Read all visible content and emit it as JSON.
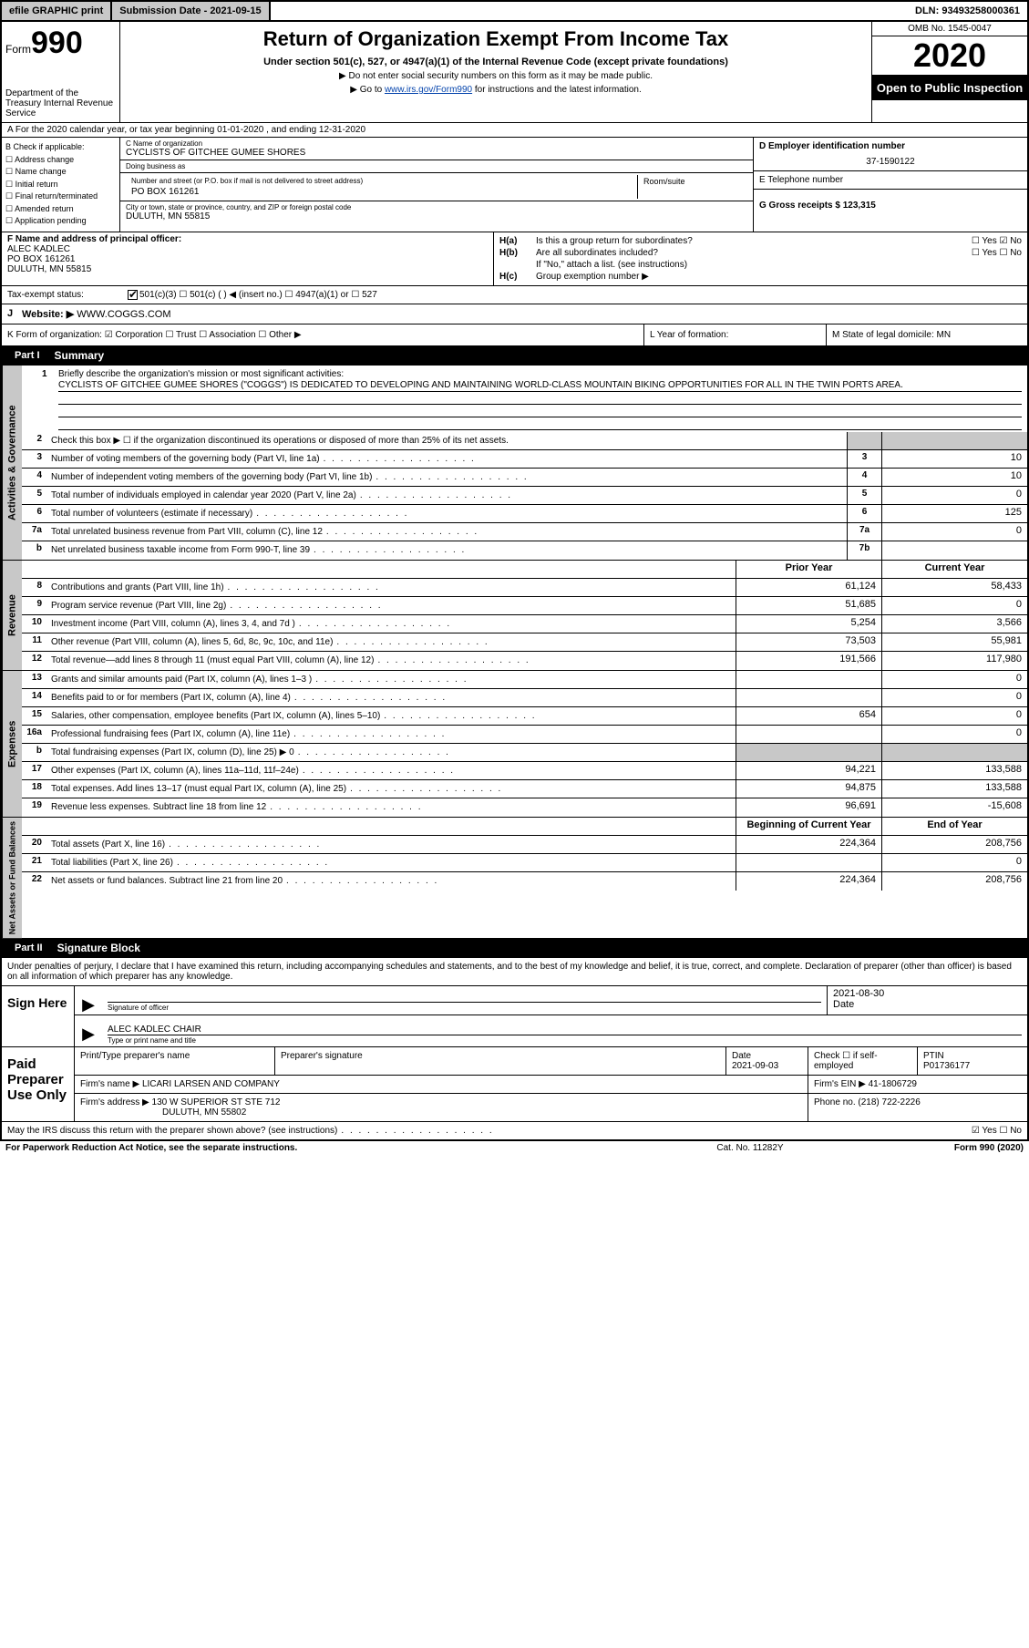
{
  "topbar": {
    "efile": "efile GRAPHIC print",
    "submission_label": "Submission Date - 2021-09-15",
    "dln": "DLN: 93493258000361"
  },
  "header": {
    "form_prefix": "Form",
    "form_number": "990",
    "dept": "Department of the Treasury Internal Revenue Service",
    "title": "Return of Organization Exempt From Income Tax",
    "subtitle": "Under section 501(c), 527, or 4947(a)(1) of the Internal Revenue Code (except private foundations)",
    "note1": "▶ Do not enter social security numbers on this form as it may be made public.",
    "note2_pre": "▶ Go to ",
    "note2_link": "www.irs.gov/Form990",
    "note2_post": " for instructions and the latest information.",
    "omb": "OMB No. 1545-0047",
    "year": "2020",
    "open": "Open to Public Inspection"
  },
  "row_a": "A For the 2020 calendar year, or tax year beginning 01-01-2020    , and ending 12-31-2020",
  "col_b": {
    "label": "B Check if applicable:",
    "items": [
      "☐ Address change",
      "☐ Name change",
      "☐ Initial return",
      "☐ Final return/terminated",
      "☐ Amended return",
      "☐ Application pending"
    ]
  },
  "col_c": {
    "name_label": "C Name of organization",
    "name": "CYCLISTS OF GITCHEE GUMEE SHORES",
    "dba_label": "Doing business as",
    "dba": "",
    "addr_label": "Number and street (or P.O. box if mail is not delivered to street address)",
    "room_label": "Room/suite",
    "addr": "PO BOX 161261",
    "city_label": "City or town, state or province, country, and ZIP or foreign postal code",
    "city": "DULUTH, MN  55815"
  },
  "col_de": {
    "d_label": "D Employer identification number",
    "d_val": "37-1590122",
    "e_label": "E Telephone number",
    "e_val": "",
    "g_label": "G Gross receipts $ 123,315"
  },
  "col_f": {
    "label": "F  Name and address of principal officer:",
    "name": "ALEC KADLEC",
    "addr1": "PO BOX 161261",
    "addr2": "DULUTH, MN  55815"
  },
  "col_h": {
    "ha_label": "H(a)",
    "ha_text": "Is this a group return for subordinates?",
    "ha_chk": "☐ Yes  ☑ No",
    "hb_label": "H(b)",
    "hb_text": "Are all subordinates included?",
    "hb_chk": "☐ Yes  ☐ No",
    "hb_note": "If \"No,\" attach a list. (see instructions)",
    "hc_label": "H(c)",
    "hc_text": "Group exemption number ▶"
  },
  "tax_status": {
    "label": "Tax-exempt status:",
    "opts": "501(c)(3)    ☐  501(c) (  ) ◀ (insert no.)    ☐  4947(a)(1) or   ☐  527"
  },
  "row_j": {
    "label": "J",
    "text": "Website: ▶",
    "val": "WWW.COGGS.COM"
  },
  "row_klm": {
    "k": "K Form of organization:  ☑ Corporation  ☐ Trust  ☐ Association  ☐ Other ▶",
    "l": "L Year of formation:",
    "m": "M State of legal domicile: MN"
  },
  "part1": {
    "num": "Part I",
    "title": "Summary"
  },
  "mission": {
    "num": "1",
    "label": "Briefly describe the organization's mission or most significant activities:",
    "text": "CYCLISTS OF GITCHEE GUMEE SHORES (\"COGGS\") IS DEDICATED TO DEVELOPING AND MAINTAINING WORLD-CLASS MOUNTAIN BIKING OPPORTUNITIES FOR ALL IN THE TWIN PORTS AREA."
  },
  "governance": {
    "side": "Activities & Governance",
    "rows": [
      {
        "n": "2",
        "d": "Check this box ▶ ☐  if the organization discontinued its operations or disposed of more than 25% of its net assets.",
        "idx": "",
        "v": ""
      },
      {
        "n": "3",
        "d": "Number of voting members of the governing body (Part VI, line 1a)",
        "idx": "3",
        "v": "10"
      },
      {
        "n": "4",
        "d": "Number of independent voting members of the governing body (Part VI, line 1b)",
        "idx": "4",
        "v": "10"
      },
      {
        "n": "5",
        "d": "Total number of individuals employed in calendar year 2020 (Part V, line 2a)",
        "idx": "5",
        "v": "0"
      },
      {
        "n": "6",
        "d": "Total number of volunteers (estimate if necessary)",
        "idx": "6",
        "v": "125"
      },
      {
        "n": "7a",
        "d": "Total unrelated business revenue from Part VIII, column (C), line 12",
        "idx": "7a",
        "v": "0"
      },
      {
        "n": "b",
        "d": "Net unrelated business taxable income from Form 990-T, line 39",
        "idx": "7b",
        "v": ""
      }
    ]
  },
  "revenue": {
    "side": "Revenue",
    "hdr_prior": "Prior Year",
    "hdr_current": "Current Year",
    "rows": [
      {
        "n": "8",
        "d": "Contributions and grants (Part VIII, line 1h)",
        "p": "61,124",
        "c": "58,433"
      },
      {
        "n": "9",
        "d": "Program service revenue (Part VIII, line 2g)",
        "p": "51,685",
        "c": "0"
      },
      {
        "n": "10",
        "d": "Investment income (Part VIII, column (A), lines 3, 4, and 7d )",
        "p": "5,254",
        "c": "3,566"
      },
      {
        "n": "11",
        "d": "Other revenue (Part VIII, column (A), lines 5, 6d, 8c, 9c, 10c, and 11e)",
        "p": "73,503",
        "c": "55,981"
      },
      {
        "n": "12",
        "d": "Total revenue—add lines 8 through 11 (must equal Part VIII, column (A), line 12)",
        "p": "191,566",
        "c": "117,980"
      }
    ]
  },
  "expenses": {
    "side": "Expenses",
    "rows": [
      {
        "n": "13",
        "d": "Grants and similar amounts paid (Part IX, column (A), lines 1–3 )",
        "p": "",
        "c": "0"
      },
      {
        "n": "14",
        "d": "Benefits paid to or for members (Part IX, column (A), line 4)",
        "p": "",
        "c": "0"
      },
      {
        "n": "15",
        "d": "Salaries, other compensation, employee benefits (Part IX, column (A), lines 5–10)",
        "p": "654",
        "c": "0"
      },
      {
        "n": "16a",
        "d": "Professional fundraising fees (Part IX, column (A), line 11e)",
        "p": "",
        "c": "0"
      },
      {
        "n": "b",
        "d": "Total fundraising expenses (Part IX, column (D), line 25) ▶ 0",
        "p": "SHADE",
        "c": "SHADE"
      },
      {
        "n": "17",
        "d": "Other expenses (Part IX, column (A), lines 11a–11d, 11f–24e)",
        "p": "94,221",
        "c": "133,588"
      },
      {
        "n": "18",
        "d": "Total expenses. Add lines 13–17 (must equal Part IX, column (A), line 25)",
        "p": "94,875",
        "c": "133,588"
      },
      {
        "n": "19",
        "d": "Revenue less expenses. Subtract line 18 from line 12",
        "p": "96,691",
        "c": "-15,608"
      }
    ]
  },
  "netassets": {
    "side": "Net Assets or Fund Balances",
    "hdr_beg": "Beginning of Current Year",
    "hdr_end": "End of Year",
    "rows": [
      {
        "n": "20",
        "d": "Total assets (Part X, line 16)",
        "p": "224,364",
        "c": "208,756"
      },
      {
        "n": "21",
        "d": "Total liabilities (Part X, line 26)",
        "p": "",
        "c": "0"
      },
      {
        "n": "22",
        "d": "Net assets or fund balances. Subtract line 21 from line 20",
        "p": "224,364",
        "c": "208,756"
      }
    ]
  },
  "part2": {
    "num": "Part II",
    "title": "Signature Block"
  },
  "sig_intro": "Under penalties of perjury, I declare that I have examined this return, including accompanying schedules and statements, and to the best of my knowledge and belief, it is true, correct, and complete. Declaration of preparer (other than officer) is based on all information of which preparer has any knowledge.",
  "sign": {
    "label": "Sign Here",
    "officer_sig_cap": "Signature of officer",
    "date_cap": "Date",
    "date_val": "2021-08-30",
    "name_val": "ALEC KADLEC  CHAIR",
    "name_cap": "Type or print name and title"
  },
  "paid": {
    "label": "Paid Preparer Use Only",
    "h1": "Print/Type preparer's name",
    "h2": "Preparer's signature",
    "h3_label": "Date",
    "h3_val": "2021-09-03",
    "h4": "Check ☐ if self-employed",
    "h5_label": "PTIN",
    "h5_val": "P01736177",
    "firm_name_label": "Firm's name    ▶",
    "firm_name": "LICARI LARSEN AND COMPANY",
    "firm_ein_label": "Firm's EIN ▶",
    "firm_ein": "41-1806729",
    "firm_addr_label": "Firm's address ▶",
    "firm_addr1": "130 W SUPERIOR ST STE 712",
    "firm_addr2": "DULUTH, MN  55802",
    "phone_label": "Phone no.",
    "phone": "(218) 722-2226"
  },
  "footer": {
    "discuss": "May the IRS discuss this return with the preparer shown above? (see instructions)",
    "discuss_chk": "☑ Yes   ☐ No",
    "pra": "For Paperwork Reduction Act Notice, see the separate instructions.",
    "cat": "Cat. No. 11282Y",
    "form": "Form 990 (2020)"
  },
  "colors": {
    "black": "#000000",
    "gray": "#c8c8c8",
    "link": "#0645ad"
  }
}
